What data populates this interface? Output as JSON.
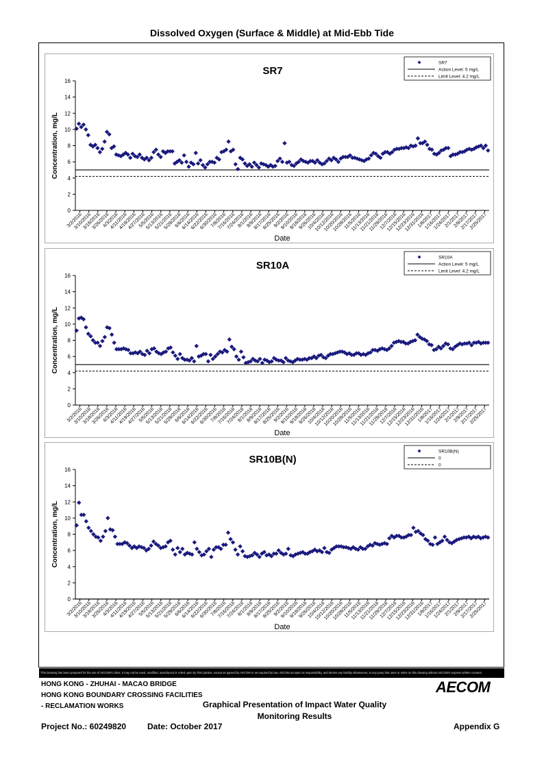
{
  "page_title": "Dissolved Oxygen (Surface & Middle) at Mid-Ebb Tide",
  "disclaimer": "This Drawing has been prepared for the use of AECOM's client. It may not be used, modified, reproduced or relied upon by third parties, except as agreed by AECOM or as required by law. AECOM accepts no responsibility, and denies any liability whatsoever, to any party that uses or relies on this drawing without AECOM's express written consent.",
  "footer": {
    "project_lines": [
      "HONG KONG - ZHUHAI - MACAO BRIDGE",
      "HONG KONG BOUNDARY CROSSING FACILITIES",
      "- RECLAMATION WORKS"
    ],
    "figure_title_1": "Graphical Presentation of Impact Water Quality",
    "figure_title_2": "Monitoring Results",
    "logo": "AECOM",
    "project_no": "Project No.: 60249820",
    "date": "Date: October 2017",
    "appendix": "Appendix G"
  },
  "chart_data": [
    {
      "type": "scatter",
      "title": "SR7",
      "xlabel": "Date",
      "ylabel": "Concentration, mg/L",
      "ylim": [
        0,
        16
      ],
      "yticks": [
        0,
        2,
        4,
        6,
        8,
        10,
        12,
        14,
        16
      ],
      "x_tick_labels": [
        "3/2/2016",
        "3/10/2016",
        "3/18/2016",
        "3/26/2016",
        "4/3/2016",
        "4/11/2016",
        "4/19/2016",
        "4/27/2016",
        "5/5/2016",
        "5/13/2016",
        "5/21/2016",
        "5/29/2016",
        "6/6/2016",
        "6/14/2016",
        "6/22/2016",
        "6/30/2016",
        "7/8/2016",
        "7/16/2016",
        "7/24/2016",
        "8/1/2016",
        "8/9/2016",
        "8/17/2016",
        "8/25/2016",
        "9/2/2016",
        "9/10/2016",
        "9/18/2016",
        "9/26/2016",
        "10/4/2016",
        "10/12/2016",
        "10/20/2016",
        "10/28/2016",
        "11/5/2016",
        "11/13/2016",
        "11/21/2016",
        "11/29/2016",
        "12/7/2016",
        "12/15/2016",
        "12/23/2016",
        "12/31/2016",
        "1/8/2017",
        "1/16/2017",
        "1/24/2017",
        "2/1/2017",
        "2/9/2017",
        "2/17/2017",
        "2/25/2017"
      ],
      "legend": [
        "SR7",
        "Action Level: 5 mg/L",
        "Limit Level: 4.2 mg/L"
      ],
      "legend_position": "top-right",
      "action_level": 5,
      "limit_level": 4.2,
      "series_values": [
        10.1,
        10.7,
        10.3,
        10.6,
        10.0,
        9.3,
        8.1,
        7.9,
        8.1,
        7.7,
        7.2,
        7.6,
        8.5,
        9.7,
        9.4,
        7.7,
        7.9,
        6.9,
        6.8,
        6.7,
        6.9,
        7.1,
        6.9,
        6.5,
        7.0,
        6.7,
        6.6,
        6.9,
        6.5,
        6.3,
        6.5,
        6.2,
        6.5,
        7.2,
        7.5,
        6.9,
        6.6,
        7.3,
        7.1,
        7.3,
        7.3,
        7.3,
        5.8,
        6.0,
        6.2,
        5.9,
        6.8,
        6.0,
        5.4,
        5.9,
        5.7,
        7.1,
        5.8,
        6.2,
        5.6,
        5.3,
        5.7,
        6.0,
        6.0,
        5.9,
        6.5,
        6.3,
        7.2,
        7.3,
        7.5,
        8.5,
        7.3,
        7.5,
        5.7,
        5.1,
        6.5,
        6.3,
        5.8,
        5.5,
        5.7,
        5.4,
        5.9,
        5.6,
        5.3,
        5.8,
        5.7,
        5.6,
        5.4,
        5.6,
        5.4,
        5.5,
        6.1,
        6.4,
        6.0,
        8.3,
        5.9,
        6.0,
        5.6,
        5.5,
        5.8,
        6.0,
        6.3,
        6.1,
        6.0,
        5.9,
        6.1,
        6.1,
        5.9,
        6.2,
        5.9,
        5.7,
        5.8,
        6.1,
        6.4,
        6.2,
        6.5,
        6.3,
        6.0,
        6.4,
        6.6,
        6.6,
        6.6,
        6.8,
        6.5,
        6.5,
        6.4,
        6.3,
        6.2,
        6.1,
        6.3,
        6.4,
        6.8,
        7.1,
        7.0,
        6.7,
        6.5,
        7.0,
        7.2,
        7.2,
        7.0,
        7.2,
        7.5,
        7.6,
        7.6,
        7.7,
        7.7,
        7.8,
        7.7,
        8.0,
        7.9,
        8.0,
        8.9,
        8.3,
        8.3,
        8.5,
        8.1,
        7.6,
        7.5,
        7.0,
        6.9,
        7.1,
        7.4,
        7.5,
        7.7,
        7.7,
        6.7,
        6.9,
        6.9,
        7.0,
        7.2,
        7.2,
        7.3,
        7.5,
        7.6,
        7.5,
        7.6,
        7.8,
        7.9,
        8.0,
        7.7,
        8.0,
        7.4
      ],
      "color": "#1a1a7e"
    },
    {
      "type": "scatter",
      "title": "SR10A",
      "xlabel": "Date",
      "ylabel": "Concentration, mg/L",
      "ylim": [
        0,
        16
      ],
      "yticks": [
        0,
        2,
        4,
        6,
        8,
        10,
        12,
        14,
        16
      ],
      "x_tick_labels": [
        "3/2/2016",
        "3/10/2016",
        "3/18/2016",
        "3/26/2016",
        "4/3/2016",
        "4/11/2016",
        "4/19/2016",
        "4/27/2016",
        "5/5/2016",
        "5/13/2016",
        "5/21/2016",
        "5/29/2016",
        "6/6/2016",
        "6/14/2016",
        "6/22/2016",
        "6/30/2016",
        "7/8/2016",
        "7/16/2016",
        "7/24/2016",
        "8/1/2016",
        "8/9/2016",
        "8/17/2016",
        "8/25/2016",
        "9/2/2016",
        "9/10/2016",
        "9/18/2016",
        "9/26/2016",
        "10/4/2016",
        "10/12/2016",
        "10/20/2016",
        "10/28/2016",
        "11/5/2016",
        "11/13/2016",
        "11/21/2016",
        "11/29/2016",
        "12/7/2016",
        "12/15/2016",
        "12/23/2016",
        "12/31/2016",
        "1/8/2017",
        "1/16/2017",
        "1/24/2017",
        "2/1/2017",
        "2/9/2017",
        "2/17/2017",
        "2/25/2017"
      ],
      "legend": [
        "SR10A",
        "Action Level: 5 mg/L",
        "Limit Level: 4.2 mg/L"
      ],
      "legend_position": "top-right",
      "action_level": 5,
      "limit_level": 4.2,
      "series_values": [
        9.2,
        10.7,
        10.8,
        10.6,
        9.6,
        8.8,
        8.5,
        8.0,
        7.7,
        7.7,
        7.3,
        7.9,
        8.4,
        9.6,
        9.5,
        8.7,
        7.7,
        6.9,
        6.9,
        6.9,
        7.0,
        6.9,
        6.8,
        6.4,
        6.4,
        6.5,
        6.4,
        6.6,
        6.3,
        6.2,
        6.7,
        6.4,
        6.9,
        7.0,
        6.6,
        6.4,
        6.3,
        6.5,
        6.6,
        7.0,
        7.1,
        6.5,
        6.1,
        5.7,
        6.3,
        5.8,
        5.6,
        5.6,
        5.5,
        5.8,
        5.4,
        7.3,
        6.0,
        6.1,
        6.3,
        6.3,
        5.4,
        6.2,
        5.7,
        6.0,
        6.3,
        6.6,
        6.5,
        6.8,
        6.6,
        8.1,
        7.2,
        6.9,
        6.0,
        5.6,
        6.6,
        5.9,
        5.2,
        5.3,
        5.4,
        5.7,
        5.5,
        5.4,
        5.7,
        5.2,
        5.6,
        5.5,
        5.3,
        5.4,
        5.8,
        5.6,
        5.5,
        5.5,
        5.3,
        5.8,
        5.5,
        5.4,
        5.3,
        5.5,
        5.7,
        5.6,
        5.6,
        5.7,
        5.6,
        5.8,
        5.8,
        6.0,
        5.8,
        6.1,
        6.2,
        5.9,
        5.8,
        6.1,
        6.3,
        6.3,
        6.4,
        6.5,
        6.6,
        6.6,
        6.5,
        6.3,
        6.4,
        6.2,
        6.2,
        6.4,
        6.4,
        6.2,
        6.3,
        6.2,
        6.4,
        6.5,
        6.8,
        6.8,
        6.7,
        6.9,
        7.0,
        6.9,
        6.8,
        7.0,
        7.3,
        7.7,
        7.8,
        7.9,
        7.8,
        7.8,
        7.6,
        7.6,
        7.8,
        7.9,
        8.0,
        8.7,
        8.4,
        8.2,
        8.1,
        7.9,
        7.5,
        7.4,
        6.8,
        6.9,
        7.2,
        7.0,
        7.3,
        7.6,
        7.5,
        7.0,
        6.9,
        7.2,
        7.4,
        7.6,
        7.5,
        7.6,
        7.6,
        7.7,
        7.4,
        7.7,
        7.7,
        7.8,
        7.6,
        7.7,
        7.7,
        7.7
      ],
      "color": "#1a1a7e"
    },
    {
      "type": "scatter",
      "title": "SR10B(N)",
      "xlabel": "Date",
      "ylabel": "Concentration, mg/L",
      "ylim": [
        0,
        16
      ],
      "yticks": [
        0,
        2,
        4,
        6,
        8,
        10,
        12,
        14,
        16
      ],
      "x_tick_labels": [
        "3/2/2016",
        "3/10/2016",
        "3/18/2016",
        "3/26/2016",
        "4/3/2016",
        "4/11/2016",
        "4/19/2016",
        "4/27/2016",
        "5/5/2016",
        "5/13/2016",
        "5/21/2016",
        "5/29/2016",
        "6/6/2016",
        "6/14/2016",
        "6/22/2016",
        "6/30/2016",
        "7/8/2016",
        "7/16/2016",
        "7/24/2016",
        "8/1/2016",
        "8/9/2016",
        "8/17/2016",
        "8/25/2016",
        "9/2/2016",
        "9/10/2016",
        "9/18/2016",
        "9/26/2016",
        "10/4/2016",
        "10/12/2016",
        "10/20/2016",
        "10/28/2016",
        "11/5/2016",
        "11/13/2016",
        "11/21/2016",
        "11/29/2016",
        "12/7/2016",
        "12/15/2016",
        "12/23/2016",
        "12/31/2016",
        "1/8/2017",
        "1/16/2017",
        "1/24/2017",
        "2/1/2017",
        "2/9/2017",
        "2/17/2017",
        "2/25/2017"
      ],
      "legend": [
        "SR10B(N)",
        "0",
        "0"
      ],
      "legend_position": "top-right",
      "action_level": 0,
      "limit_level": 0,
      "series_values": [
        9.1,
        11.9,
        10.4,
        10.4,
        9.6,
        8.8,
        8.4,
        8.0,
        7.7,
        7.6,
        7.2,
        7.7,
        8.4,
        10.0,
        8.6,
        8.5,
        7.7,
        6.8,
        6.8,
        6.8,
        7.0,
        6.9,
        6.6,
        6.3,
        6.5,
        6.3,
        6.5,
        6.4,
        6.3,
        6.0,
        6.2,
        6.6,
        7.1,
        6.8,
        6.6,
        6.3,
        6.4,
        6.5,
        7.0,
        7.2,
        6.1,
        5.5,
        6.3,
        5.8,
        6.2,
        5.5,
        5.7,
        5.6,
        5.5,
        7.0,
        6.2,
        5.8,
        5.4,
        5.5,
        5.9,
        6.2,
        5.2,
        6.1,
        6.4,
        6.4,
        6.2,
        6.7,
        6.7,
        8.2,
        7.4,
        7.0,
        6.1,
        5.5,
        6.5,
        5.9,
        5.3,
        5.2,
        5.3,
        5.4,
        5.7,
        5.5,
        5.2,
        5.6,
        5.8,
        5.4,
        5.5,
        5.3,
        5.6,
        5.6,
        6.0,
        5.7,
        5.5,
        5.6,
        6.2,
        5.4,
        5.3,
        5.5,
        5.6,
        5.7,
        5.8,
        5.6,
        5.6,
        5.8,
        5.9,
        6.1,
        5.9,
        6.0,
        5.8,
        6.3,
        5.8,
        5.7,
        6.1,
        6.3,
        6.5,
        6.5,
        6.5,
        6.4,
        6.4,
        6.3,
        6.2,
        6.4,
        6.2,
        6.1,
        6.4,
        6.2,
        6.2,
        6.5,
        6.7,
        6.6,
        6.9,
        6.8,
        6.7,
        6.8,
        6.9,
        6.8,
        7.5,
        7.8,
        7.6,
        7.8,
        7.8,
        7.6,
        7.6,
        7.7,
        7.9,
        7.9,
        8.8,
        8.3,
        8.4,
        8.1,
        7.9,
        7.4,
        7.2,
        6.8,
        6.7,
        7.6,
        6.8,
        7.0,
        7.2,
        7.7,
        7.3,
        7.0,
        6.9,
        7.1,
        7.3,
        7.4,
        7.5,
        7.6,
        7.6,
        7.7,
        7.5,
        7.7,
        7.6,
        7.7,
        7.5,
        7.6,
        7.7,
        7.6
      ],
      "color": "#1a1a7e"
    }
  ]
}
